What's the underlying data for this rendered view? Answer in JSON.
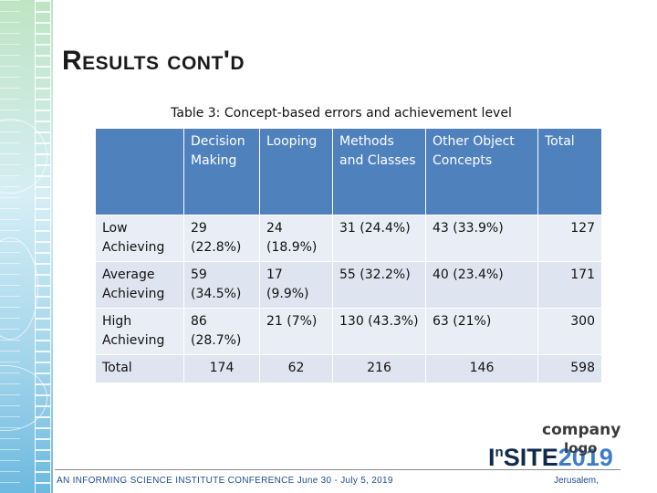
{
  "slide": {
    "title": "Results cont'd",
    "caption": "Table 3: Concept-based errors and achievement level"
  },
  "table": {
    "headers": [
      "",
      "Decision Making",
      "Looping",
      "Methods and Classes",
      "Other Object Concepts",
      "Total"
    ],
    "rows": [
      {
        "label": "Low Achieving",
        "cells": [
          "29 (22.8%)",
          "24 (18.9%)",
          "31 (24.4%)",
          "43 (33.9%)",
          "127"
        ]
      },
      {
        "label": "Average Achieving",
        "cells": [
          "59 (34.5%)",
          "17 (9.9%)",
          "55 (32.2%)",
          "40 (23.4%)",
          "171"
        ]
      },
      {
        "label": "High Achieving",
        "cells": [
          "86 (28.7%)",
          "21 (7%)",
          "130 (43.3%)",
          "63 (21%)",
          "300"
        ]
      },
      {
        "label": "Total",
        "cells": [
          "174",
          "62",
          "216",
          "146",
          "598"
        ]
      }
    ]
  },
  "logo": {
    "company": "company",
    "logo_word": "logo",
    "brand_prefix": "I",
    "brand_sup": "n",
    "brand_main": "SITE",
    "brand_year": "2019"
  },
  "footer": {
    "conference": "AN INFORMING SCIENCE INSTITUTE CONFERENCE June 30 - July 5, 2019",
    "city": "Jerusalem,"
  },
  "colors": {
    "header_blue": "#4f81bd",
    "row_light": "#e9edf5",
    "footer_blue": "#1f4e8c"
  }
}
